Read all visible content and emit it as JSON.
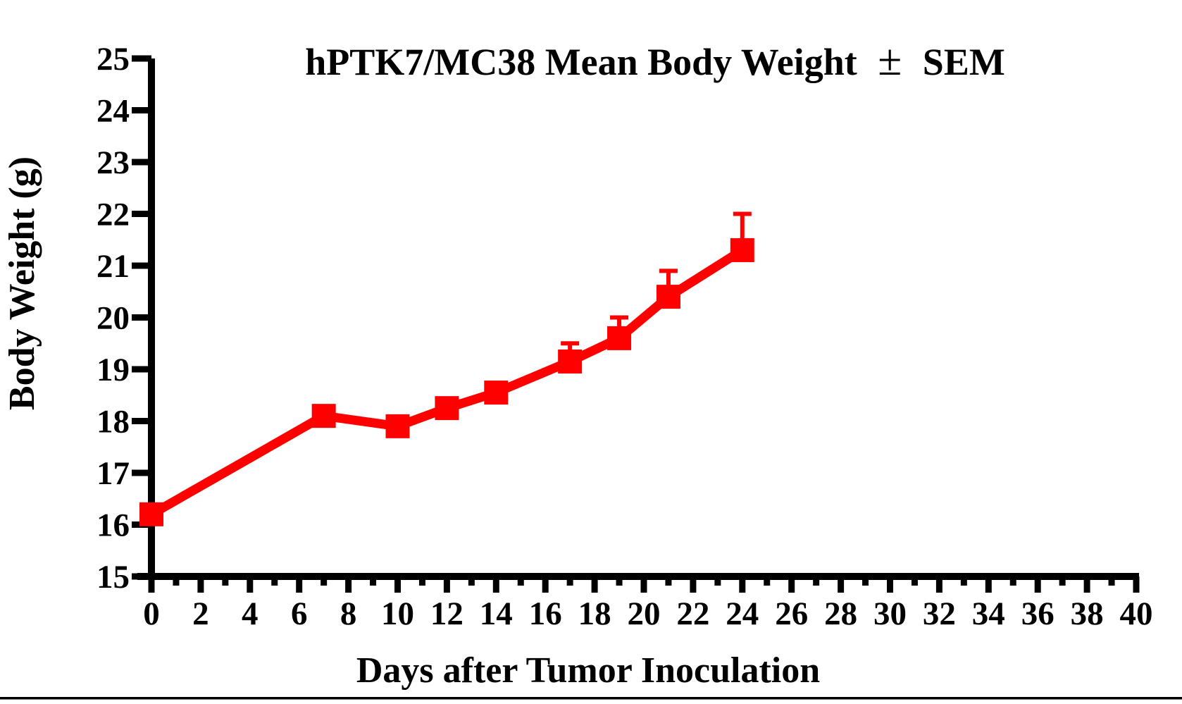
{
  "chart_data": {
    "type": "line",
    "title": "hPTK7/MC38 Mean Body Weight ± SEM",
    "title_parts": {
      "before": "hPTK7/MC38 Mean Body Weight",
      "pm": "±",
      "after": "SEM"
    },
    "xlabel": "Days after Tumor Inoculation",
    "ylabel": "Body Weight (g)",
    "xlim": [
      0,
      40
    ],
    "ylim": [
      15,
      25
    ],
    "grid": false,
    "legend": false,
    "error_bars": "upper-only SEM",
    "x_ticks_major": [
      0,
      2,
      4,
      6,
      8,
      10,
      12,
      14,
      16,
      18,
      20,
      22,
      24,
      26,
      28,
      30,
      32,
      34,
      36,
      38,
      40
    ],
    "x_tick_labels": [
      "0",
      "2",
      "4",
      "6",
      "8",
      "10",
      "12",
      "14",
      "16",
      "18",
      "20",
      "22",
      "24",
      "26",
      "28",
      "30",
      "32",
      "34",
      "36",
      "38",
      "40"
    ],
    "x_ticks_minor": [
      1,
      3,
      5,
      7,
      9,
      11,
      13,
      15,
      17,
      19,
      21,
      23,
      25,
      27,
      29,
      31,
      33,
      35,
      37,
      39
    ],
    "y_ticks": [
      15,
      16,
      17,
      18,
      19,
      20,
      21,
      22,
      23,
      24,
      25
    ],
    "y_tick_labels": [
      "15",
      "16",
      "17",
      "18",
      "19",
      "20",
      "21",
      "22",
      "23",
      "24",
      "25"
    ],
    "series": [
      {
        "name": "hPTK7/MC38",
        "color": "#FF0000",
        "marker": "square",
        "x": [
          0,
          7,
          10,
          12,
          14,
          17,
          19,
          21,
          24
        ],
        "y": [
          16.2,
          18.1,
          17.9,
          18.25,
          18.55,
          19.15,
          19.6,
          20.4,
          21.3
        ],
        "sem_upper": [
          0,
          0,
          0,
          0,
          0,
          0.35,
          0.4,
          0.5,
          0.7
        ]
      }
    ]
  },
  "colors": {
    "series_red": "#FF0000",
    "axis_black": "#000000",
    "background": "#FFFFFF"
  }
}
